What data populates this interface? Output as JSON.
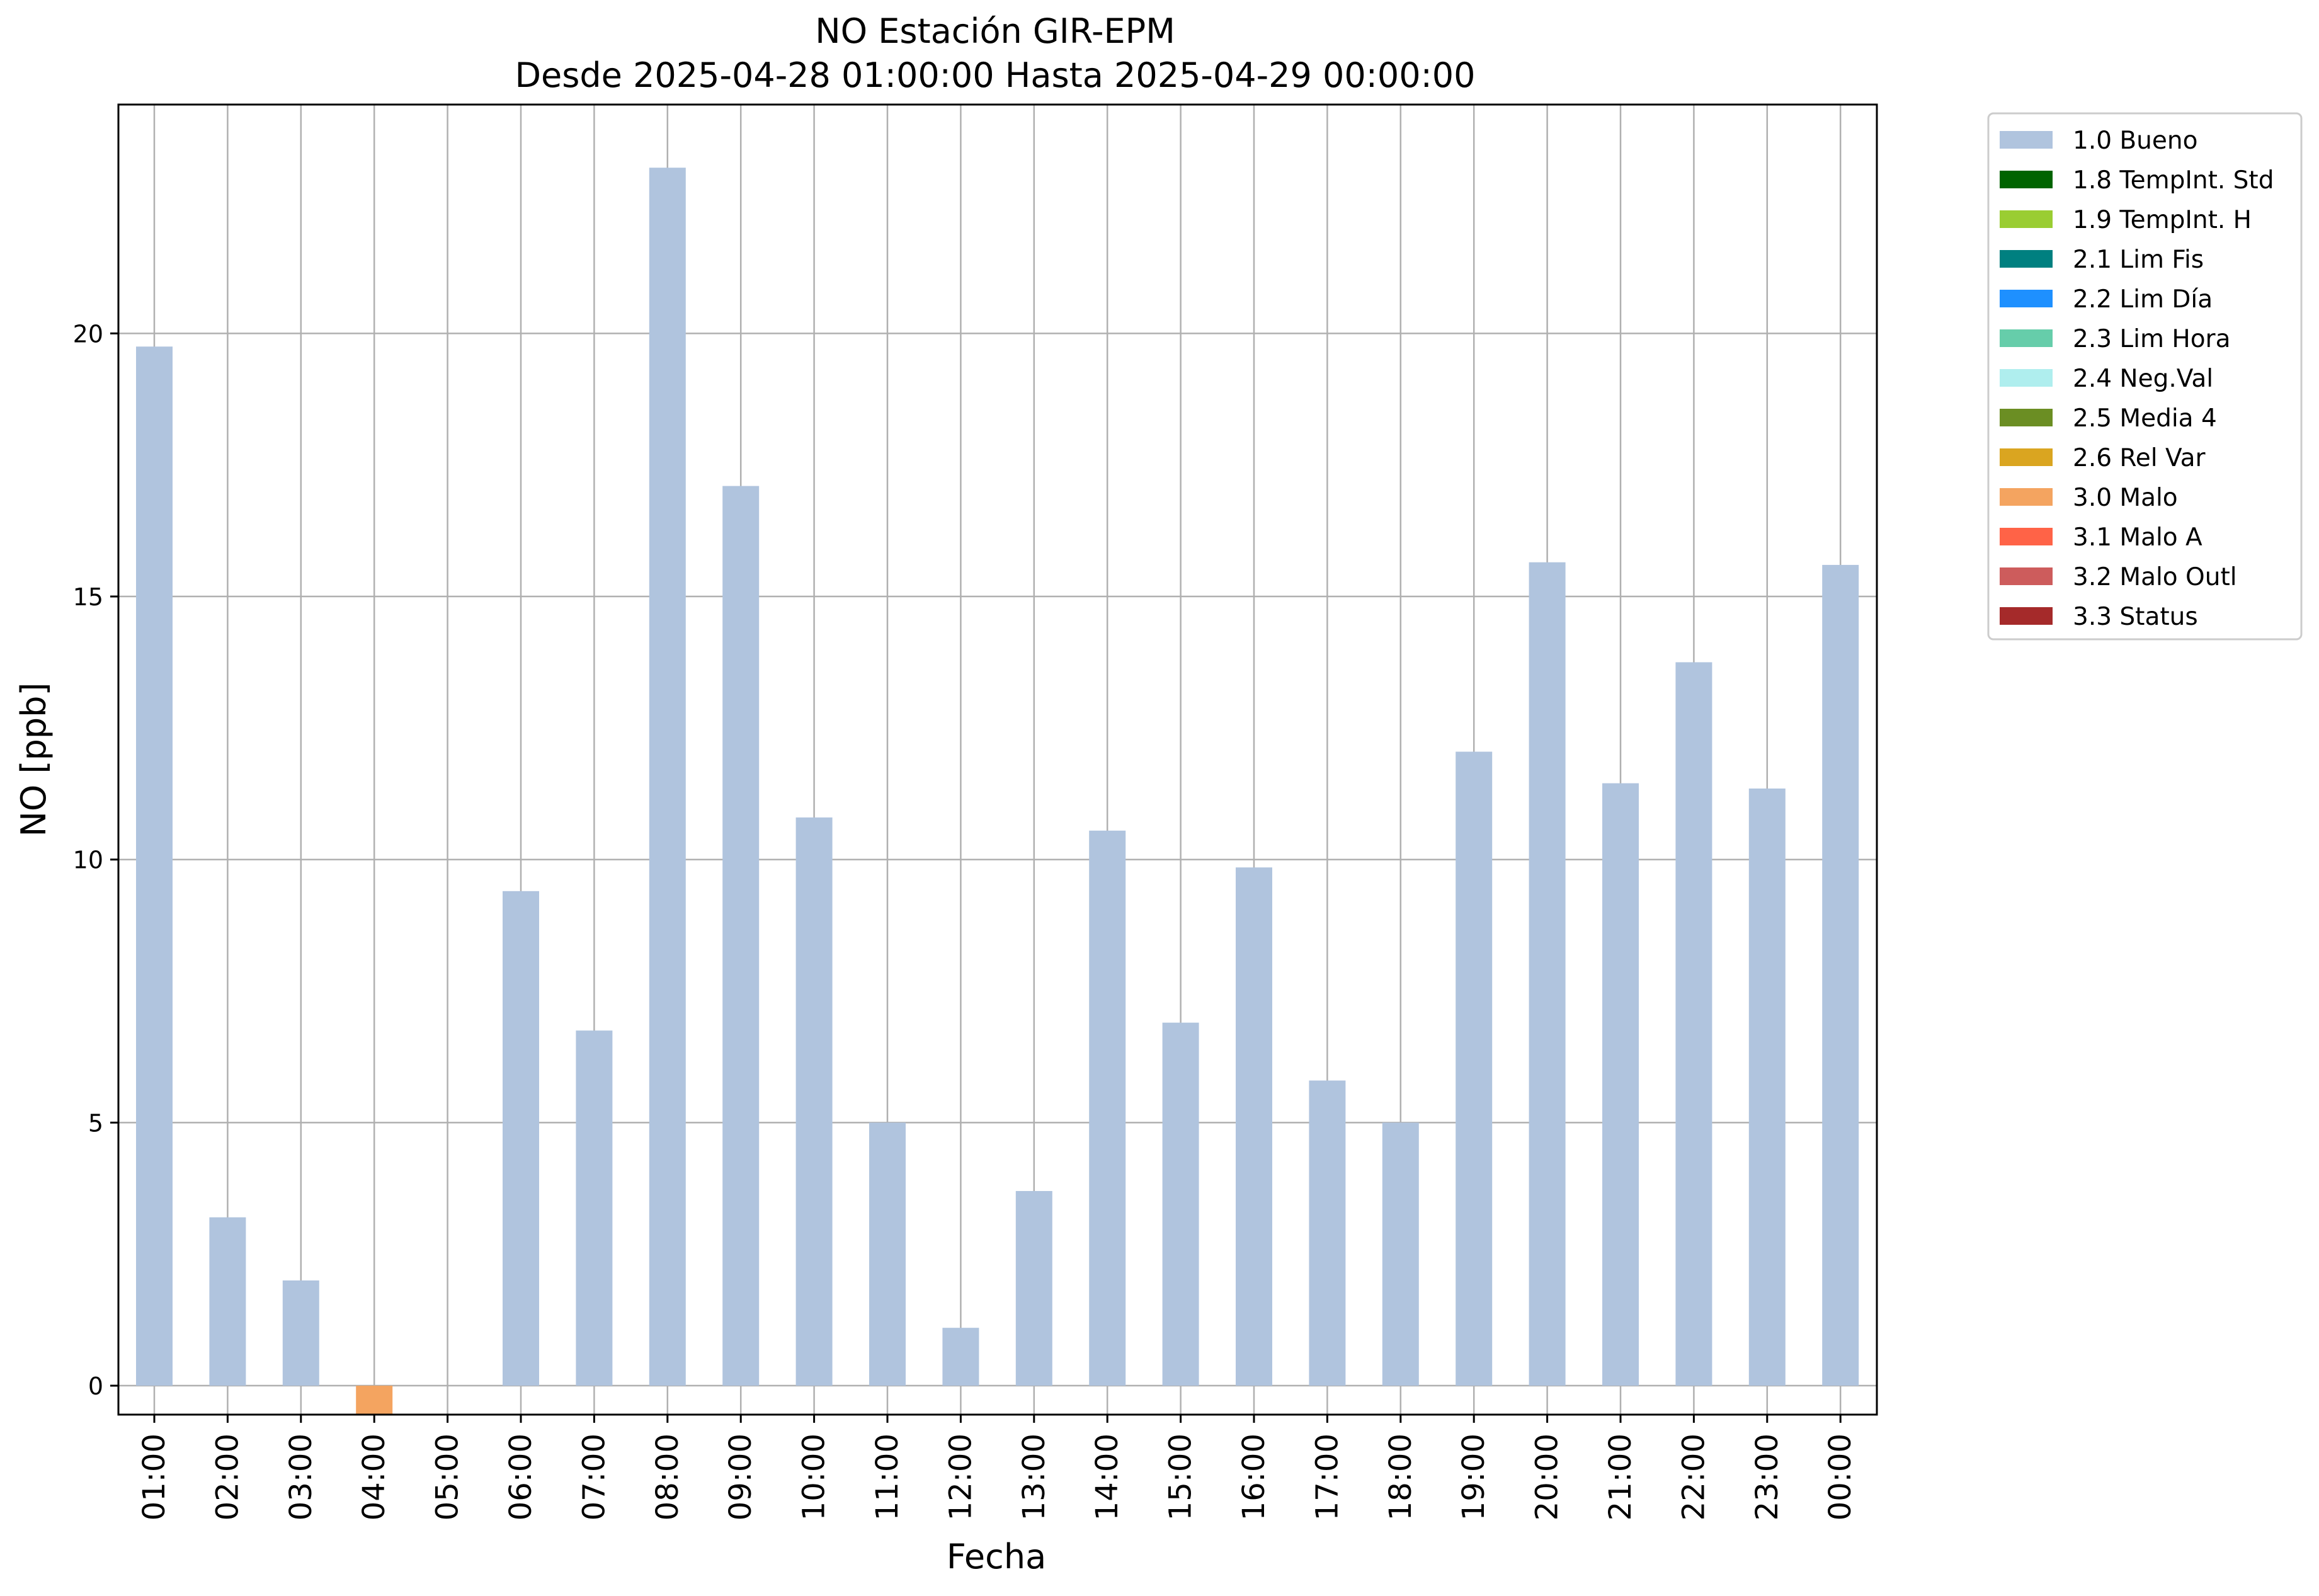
{
  "chart_data": {
    "type": "bar",
    "title": "NO Estación GIR-EPM",
    "subtitle": "Desde 2025-04-28 01:00:00 Hasta 2025-04-29 00:00:00",
    "xlabel": "Fecha",
    "ylabel": "NO [ppb]",
    "ylim": [
      -0.55,
      24.35
    ],
    "yticks": [
      0,
      5,
      10,
      15,
      20
    ],
    "grid": true,
    "legend_position": "outside-right-top",
    "categories": [
      "01:00",
      "02:00",
      "03:00",
      "04:00",
      "05:00",
      "06:00",
      "07:00",
      "08:00",
      "09:00",
      "10:00",
      "11:00",
      "12:00",
      "13:00",
      "14:00",
      "15:00",
      "16:00",
      "17:00",
      "18:00",
      "19:00",
      "20:00",
      "21:00",
      "22:00",
      "23:00",
      "00:00"
    ],
    "values": [
      19.75,
      3.2,
      2.0,
      -0.55,
      null,
      9.4,
      6.75,
      23.15,
      17.1,
      10.8,
      5.0,
      1.1,
      3.7,
      10.55,
      6.9,
      9.85,
      5.8,
      5.0,
      12.05,
      15.65,
      11.45,
      13.75,
      11.35,
      15.6
    ],
    "flags": [
      "1.0 Bueno",
      "1.0 Bueno",
      "1.0 Bueno",
      "3.0 Malo",
      null,
      "1.0 Bueno",
      "1.0 Bueno",
      "1.0 Bueno",
      "1.0 Bueno",
      "1.0 Bueno",
      "1.0 Bueno",
      "1.0 Bueno",
      "1.0 Bueno",
      "1.0 Bueno",
      "1.0 Bueno",
      "1.0 Bueno",
      "1.0 Bueno",
      "1.0 Bueno",
      "1.0 Bueno",
      "1.0 Bueno",
      "1.0 Bueno",
      "1.0 Bueno",
      "1.0 Bueno",
      "1.0 Bueno"
    ],
    "legend": [
      {
        "label": "1.0 Bueno",
        "color": "#b0c4de"
      },
      {
        "label": "1.8 TempInt. Std",
        "color": "#006400"
      },
      {
        "label": "1.9 TempInt. H",
        "color": "#9acd32"
      },
      {
        "label": "2.1 Lim Fis",
        "color": "#008080"
      },
      {
        "label": "2.2 Lim Día",
        "color": "#1e90ff"
      },
      {
        "label": "2.3 Lim Hora",
        "color": "#66cdaa"
      },
      {
        "label": "2.4 Neg.Val",
        "color": "#afeeee"
      },
      {
        "label": "2.5 Media 4",
        "color": "#6b8e23"
      },
      {
        "label": "2.6 Rel Var",
        "color": "#daa520"
      },
      {
        "label": "3.0 Malo",
        "color": "#f4a460"
      },
      {
        "label": "3.1 Malo A",
        "color": "#ff6347"
      },
      {
        "label": "3.2 Malo Outl",
        "color": "#cd5c5c"
      },
      {
        "label": "3.3 Status",
        "color": "#a52a2a"
      }
    ]
  }
}
